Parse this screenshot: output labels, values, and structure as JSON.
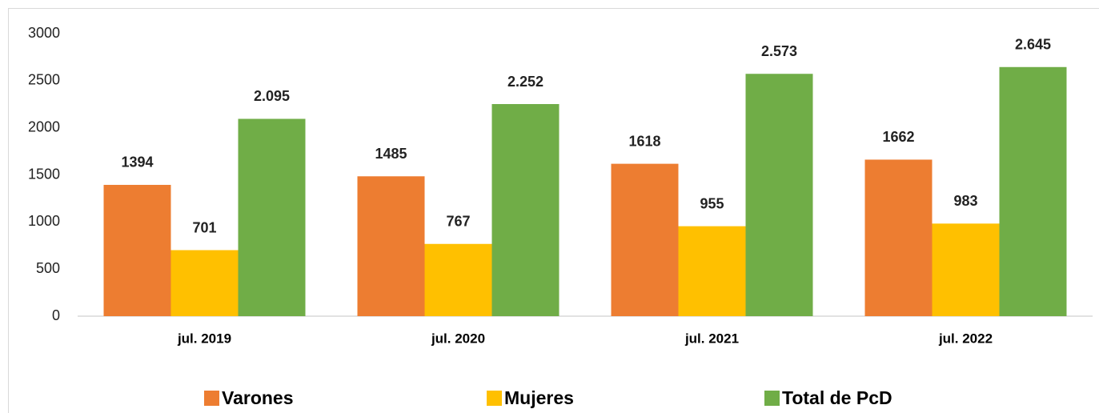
{
  "chart_data": {
    "type": "bar",
    "categories": [
      "jul. 2019",
      "jul. 2020",
      "jul. 2021",
      "jul. 2022"
    ],
    "series": [
      {
        "name": "Varones",
        "color": "#ed7d31",
        "values": [
          1394,
          1485,
          1618,
          1662
        ]
      },
      {
        "name": "Mujeres",
        "color": "#ffc000",
        "values": [
          701,
          767,
          955,
          983
        ]
      },
      {
        "name": "Total de PcD",
        "color": "#70ad47",
        "values": [
          2095,
          2252,
          2573,
          2645
        ],
        "value_labels": [
          "2.095",
          "2.252",
          "2.573",
          "2.645"
        ]
      }
    ],
    "ylim": [
      0,
      3000
    ],
    "yticks": [
      0,
      500,
      1000,
      1500,
      2000,
      2500,
      3000
    ],
    "grid": false,
    "legend": "bottom"
  }
}
